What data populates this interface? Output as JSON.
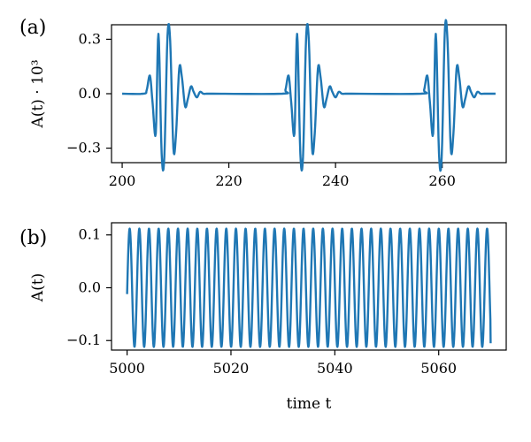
{
  "chart_data": [
    {
      "type": "line",
      "panel_label": "(a)",
      "ylabel": "A(t) · 10³",
      "xlabel": "",
      "xlim": [
        198,
        272
      ],
      "ylim": [
        -0.38,
        0.38
      ],
      "xticks": [
        200,
        220,
        240,
        260
      ],
      "yticks": [
        {
          "value": 0.3,
          "label": "0.3"
        },
        {
          "value": 0.0,
          "label": "0.0"
        },
        {
          "value": -0.3,
          "label": "−0.3"
        }
      ],
      "series": [
        {
          "color": "#1f77b4",
          "x": [
            200.0,
            204.0,
            204.6,
            205.2,
            205.7,
            206.3,
            206.8,
            207.4,
            207.9,
            208.5,
            209.0,
            209.6,
            210.1,
            210.7,
            211.2,
            211.8,
            212.3,
            212.9,
            213.4,
            214.0,
            214.6,
            215.2,
            215.8,
            216.4,
            217.0,
            230.0,
            230.6,
            231.2,
            231.7,
            232.3,
            232.8,
            233.4,
            233.9,
            234.5,
            235.0,
            235.6,
            236.1,
            236.7,
            237.2,
            237.8,
            238.3,
            238.9,
            239.4,
            240.0,
            240.6,
            241.2,
            241.8,
            242.4,
            243.0,
            256.0,
            256.6,
            257.2,
            257.7,
            258.3,
            258.8,
            259.4,
            259.9,
            260.5,
            261.0,
            261.6,
            262.1,
            262.7,
            263.2,
            263.8,
            264.3,
            264.9,
            265.4,
            266.0,
            266.6,
            267.2,
            267.8,
            268.4,
            269.0,
            270.0
          ],
          "y": [
            0.0,
            0.0,
            0.02,
            0.1,
            -0.05,
            -0.22,
            0.33,
            -0.33,
            -0.35,
            0.32,
            0.29,
            -0.3,
            -0.22,
            0.14,
            0.09,
            -0.07,
            -0.03,
            0.04,
            0.01,
            -0.02,
            0.01,
            0.0,
            0.0,
            0.0,
            0.0,
            0.0,
            0.02,
            0.1,
            -0.05,
            -0.22,
            0.33,
            -0.33,
            -0.35,
            0.32,
            0.29,
            -0.3,
            -0.22,
            0.14,
            0.09,
            -0.07,
            -0.03,
            0.04,
            0.01,
            -0.02,
            0.01,
            0.0,
            0.0,
            0.0,
            0.0,
            0.0,
            0.02,
            0.1,
            -0.05,
            -0.22,
            0.33,
            -0.33,
            -0.35,
            0.35,
            0.29,
            -0.3,
            -0.22,
            0.14,
            0.09,
            -0.07,
            -0.03,
            0.04,
            0.01,
            -0.02,
            0.01,
            0.0,
            0.0,
            0.0,
            0.0,
            0.0
          ]
        }
      ]
    },
    {
      "type": "line",
      "panel_label": "(b)",
      "ylabel": "A(t)",
      "xlabel": "time t",
      "xlim": [
        4997,
        5073
      ],
      "ylim": [
        -0.118,
        0.123
      ],
      "xticks": [
        5000,
        5020,
        5040,
        5060
      ],
      "yticks": [
        {
          "value": 0.1,
          "label": "0.1"
        },
        {
          "value": 0.0,
          "label": "0.0"
        },
        {
          "value": -0.1,
          "label": "−0.1"
        }
      ],
      "series": [
        {
          "color": "#1f77b4",
          "oscillation": {
            "t_start": 5000,
            "t_end": 5070,
            "amplitude": 0.112,
            "period": 1.86,
            "start_value": -0.012,
            "end_value": -0.105
          }
        }
      ]
    }
  ]
}
